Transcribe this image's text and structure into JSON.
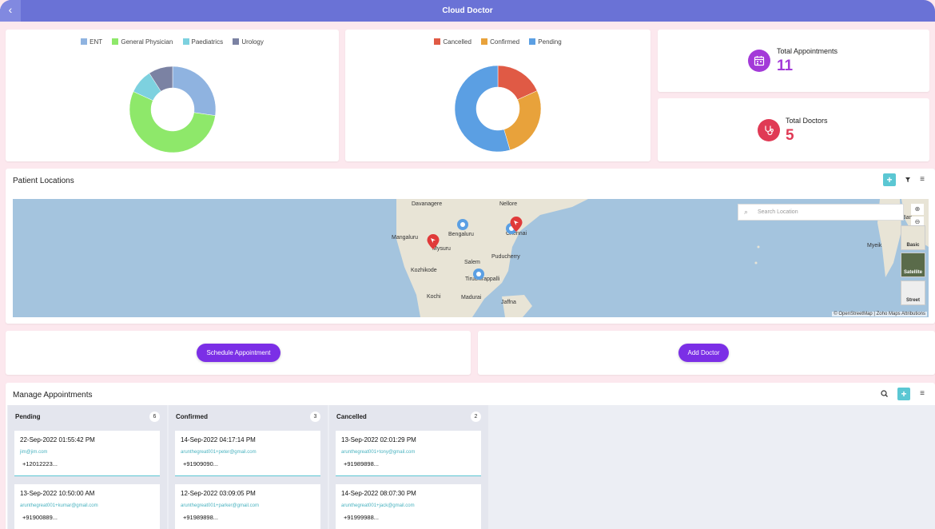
{
  "app": {
    "title": "Cloud Doctor",
    "back_icon": "chevron-left-icon"
  },
  "specialty_chart": {
    "chart_data": {
      "type": "pie",
      "series": [
        {
          "name": "ENT",
          "value": 3,
          "color": "#8fb3e0"
        },
        {
          "name": "General Physician",
          "value": 6,
          "color": "#8ee86a"
        },
        {
          "name": "Paediatrics",
          "value": 1,
          "color": "#7dd1df"
        },
        {
          "name": "Urology",
          "value": 1,
          "color": "#7b82a3"
        }
      ],
      "legend": "top"
    }
  },
  "status_chart": {
    "chart_data": {
      "type": "pie",
      "series": [
        {
          "name": "Cancelled",
          "value": 2,
          "color": "#e05a45"
        },
        {
          "name": "Confirmed",
          "value": 3,
          "color": "#e8a23b"
        },
        {
          "name": "Pending",
          "value": 6,
          "color": "#5b9fe3"
        }
      ],
      "legend": "top"
    }
  },
  "stats": {
    "appointments": {
      "label": "Total Appointments",
      "value": "11",
      "color": "#a33ad8",
      "icon": "calendar-icon"
    },
    "doctors": {
      "label": "Total Doctors",
      "value": "5",
      "color": "#e03a55",
      "icon": "stethoscope-icon"
    }
  },
  "locations": {
    "title": "Patient Locations",
    "search_placeholder": "Search Location",
    "cities": [
      "Davanagere",
      "Nellore",
      "Bengaluru",
      "Chennai",
      "Mangaluru",
      "Mysuru",
      "Salem",
      "Puducherry",
      "Kozhikode",
      "Tiruchirappalli",
      "Kochi",
      "Madurai",
      "Jaffna",
      "Myeik",
      "Ban"
    ],
    "layers": [
      "Basic",
      "Satellite",
      "Street"
    ],
    "attribution": "© OpenStreetMap | Zoho Maps Attributions"
  },
  "actions": {
    "schedule": "Schedule Appointment",
    "add_doctor": "Add Doctor"
  },
  "manage": {
    "title": "Manage Appointments",
    "columns": [
      {
        "title": "Pending",
        "count": "6",
        "cards": [
          {
            "datetime": "22-Sep-2022 01:55:42 PM",
            "email": "jim@jim.com",
            "phone": "+12012223..."
          },
          {
            "datetime": "13-Sep-2022 10:50:00 AM",
            "email": "arunthegreat001+kumar@gmail.com",
            "phone": "+91900889..."
          }
        ]
      },
      {
        "title": "Confirmed",
        "count": "3",
        "cards": [
          {
            "datetime": "14-Sep-2022 04:17:14 PM",
            "email": "arunthegreat001+peter@gmail.com",
            "phone": "+91909090..."
          },
          {
            "datetime": "12-Sep-2022 03:09:05 PM",
            "email": "arunthegreat001+parker@gmail.com",
            "phone": "+91989898..."
          }
        ]
      },
      {
        "title": "Cancelled",
        "count": "2",
        "cards": [
          {
            "datetime": "13-Sep-2022 02:01:29 PM",
            "email": "arunthegreat001+tony@gmail.com",
            "phone": "+91989898..."
          },
          {
            "datetime": "14-Sep-2022 08:07:30 PM",
            "email": "arunthegreat001+jack@gmail.com",
            "phone": "+91999988..."
          }
        ]
      }
    ]
  }
}
